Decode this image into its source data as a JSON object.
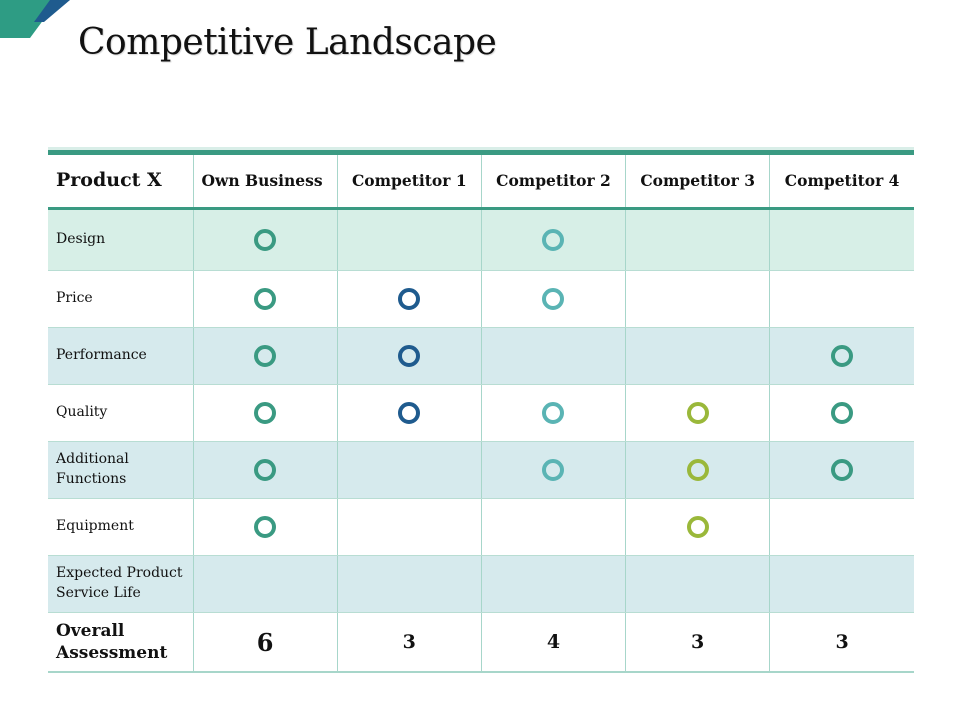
{
  "title": "Competitive Landscape",
  "colors": {
    "accent_green": "#3a9a82",
    "deco_teal": "#2e9c84",
    "deco_navy": "#1f5b8e",
    "ring_own": "#3a9a82",
    "ring_c1": "#1f5b8e",
    "ring_c2": "#5ab4b4",
    "ring_c3": "#9ab83a",
    "ring_c4": "#3a9a82",
    "row_green": "#d7efe7",
    "row_blue": "#d6eaed"
  },
  "table": {
    "header": {
      "product": "Product X",
      "own": "Own Business",
      "c1": "Competitor 1",
      "c2": "Competitor 2",
      "c3": "Competitor 3",
      "c4": "Competitor 4"
    },
    "rows": [
      {
        "label": "Design",
        "marks": [
          true,
          false,
          true,
          false,
          false
        ]
      },
      {
        "label": "Price",
        "marks": [
          true,
          true,
          true,
          false,
          false
        ]
      },
      {
        "label": "Performance",
        "marks": [
          true,
          true,
          false,
          false,
          true
        ]
      },
      {
        "label": "Quality",
        "marks": [
          true,
          true,
          true,
          true,
          true
        ]
      },
      {
        "label": "Additional Functions",
        "marks": [
          true,
          false,
          true,
          true,
          true
        ]
      },
      {
        "label": "Equipment",
        "marks": [
          true,
          false,
          false,
          true,
          false
        ]
      },
      {
        "label": "Expected Product Service Life",
        "marks": [
          false,
          false,
          false,
          false,
          false
        ]
      }
    ],
    "overall": {
      "label": "Overall Assessment",
      "scores": [
        "6",
        "3",
        "4",
        "3",
        "3"
      ]
    }
  }
}
